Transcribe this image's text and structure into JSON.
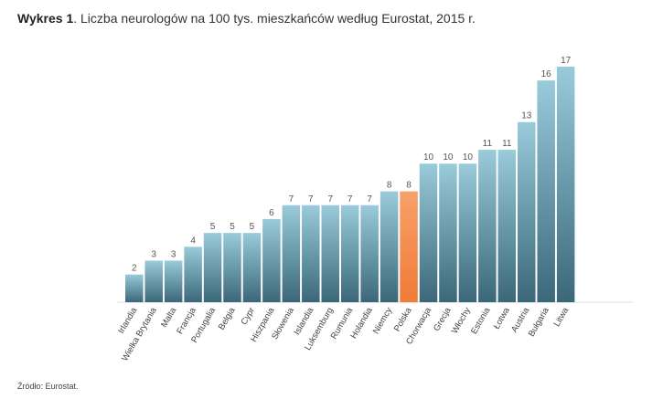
{
  "title_bold": "Wykres 1",
  "title_rest": ". Liczba neurologów na 100 tys. mieszkańców według Eurostat, 2015 r.",
  "source": "Źródło: Eurostat.",
  "chart_data": {
    "type": "bar",
    "title": "Wykres 1. Liczba neurologów na 100 tys. mieszkańców według Eurostat, 2015 r.",
    "xlabel": "",
    "ylabel": "",
    "ylim": [
      0,
      17
    ],
    "categories": [
      "Irlandia",
      "Wielka Brytania",
      "Malta",
      "Francja",
      "Portugalia",
      "Belgia",
      "Cypr",
      "Hiszpania",
      "Słowenia",
      "Islandia",
      "Luksemburg",
      "Rumunia",
      "Holandia",
      "Niemcy",
      "Polska",
      "Chorwacja",
      "Grecja",
      "Włochy",
      "Estonia",
      "Łotwa",
      "Austria",
      "Bułgaria",
      "Litwa"
    ],
    "values": [
      2,
      3,
      3,
      4,
      5,
      5,
      5,
      6,
      7,
      7,
      7,
      7,
      7,
      8,
      8,
      10,
      10,
      10,
      11,
      11,
      13,
      16,
      17
    ],
    "highlight": "Polska",
    "colors": {
      "bar_top": "#9acbdb",
      "bar_bottom": "#3a6878",
      "highlight_top": "#f8a06a",
      "highlight_bottom": "#f07b36",
      "baseline": "#dddddd"
    }
  }
}
